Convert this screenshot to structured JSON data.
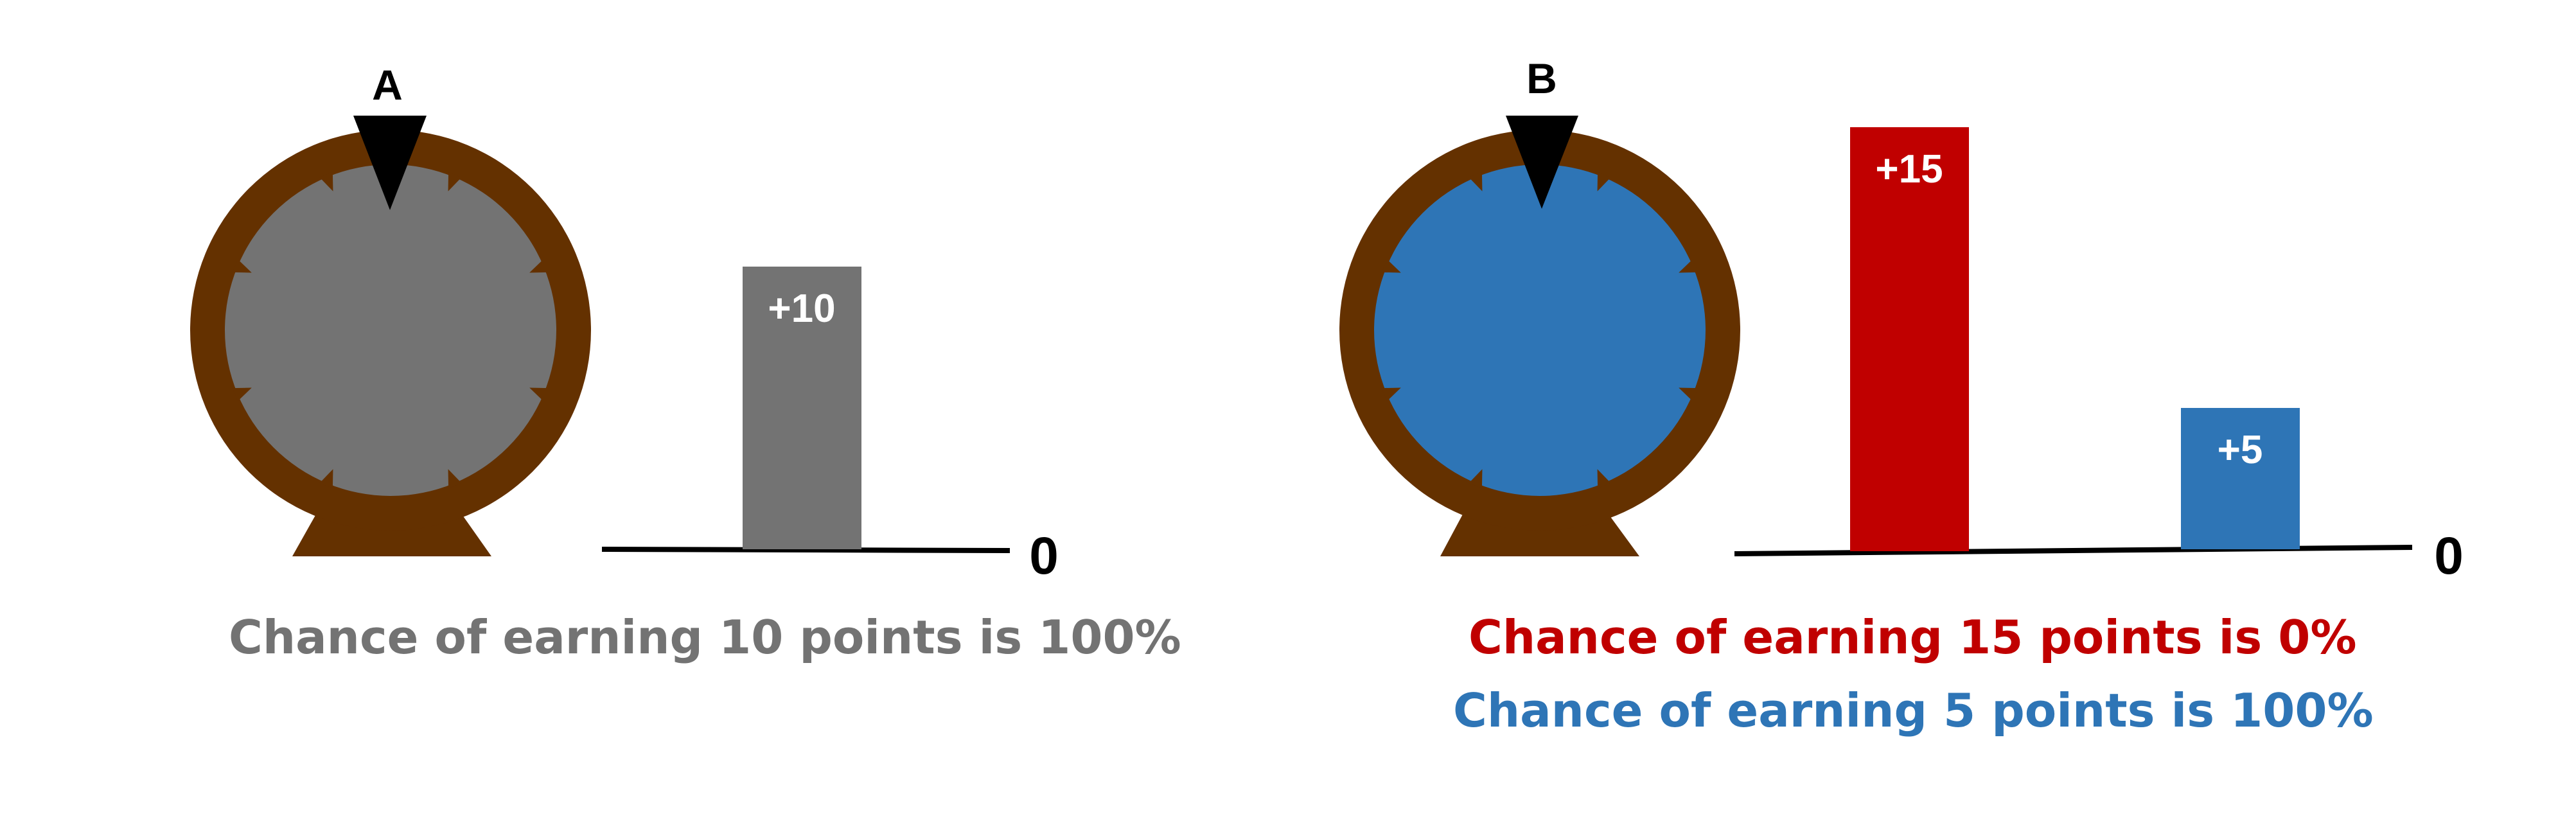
{
  "colors": {
    "wheel_rim": "#643100",
    "gray": "#737373",
    "blue": "#2e75b6",
    "red": "#c00000",
    "pointer": "#000000",
    "axis": "#000000",
    "bar_text": "#ffffff"
  },
  "panels": [
    {
      "label": "A",
      "wheel_fill": "gray",
      "axis_label": "0",
      "bars": [
        {
          "label": "+10",
          "value": 10,
          "color": "gray"
        }
      ],
      "captions": [
        {
          "text": "Chance of earning 10 points is 100%",
          "color": "gray"
        }
      ]
    },
    {
      "label": "B",
      "wheel_fill": "blue",
      "axis_label": "0",
      "bars": [
        {
          "label": "+15",
          "value": 15,
          "color": "red"
        },
        {
          "label": "+5",
          "value": 5,
          "color": "blue"
        }
      ],
      "captions": [
        {
          "text": "Chance of earning 15 points is 0%",
          "color": "red"
        },
        {
          "text": "Chance of earning 5 points is 100%",
          "color": "blue"
        }
      ]
    }
  ],
  "icons": [
    "wheel-icon",
    "pointer-icon"
  ]
}
